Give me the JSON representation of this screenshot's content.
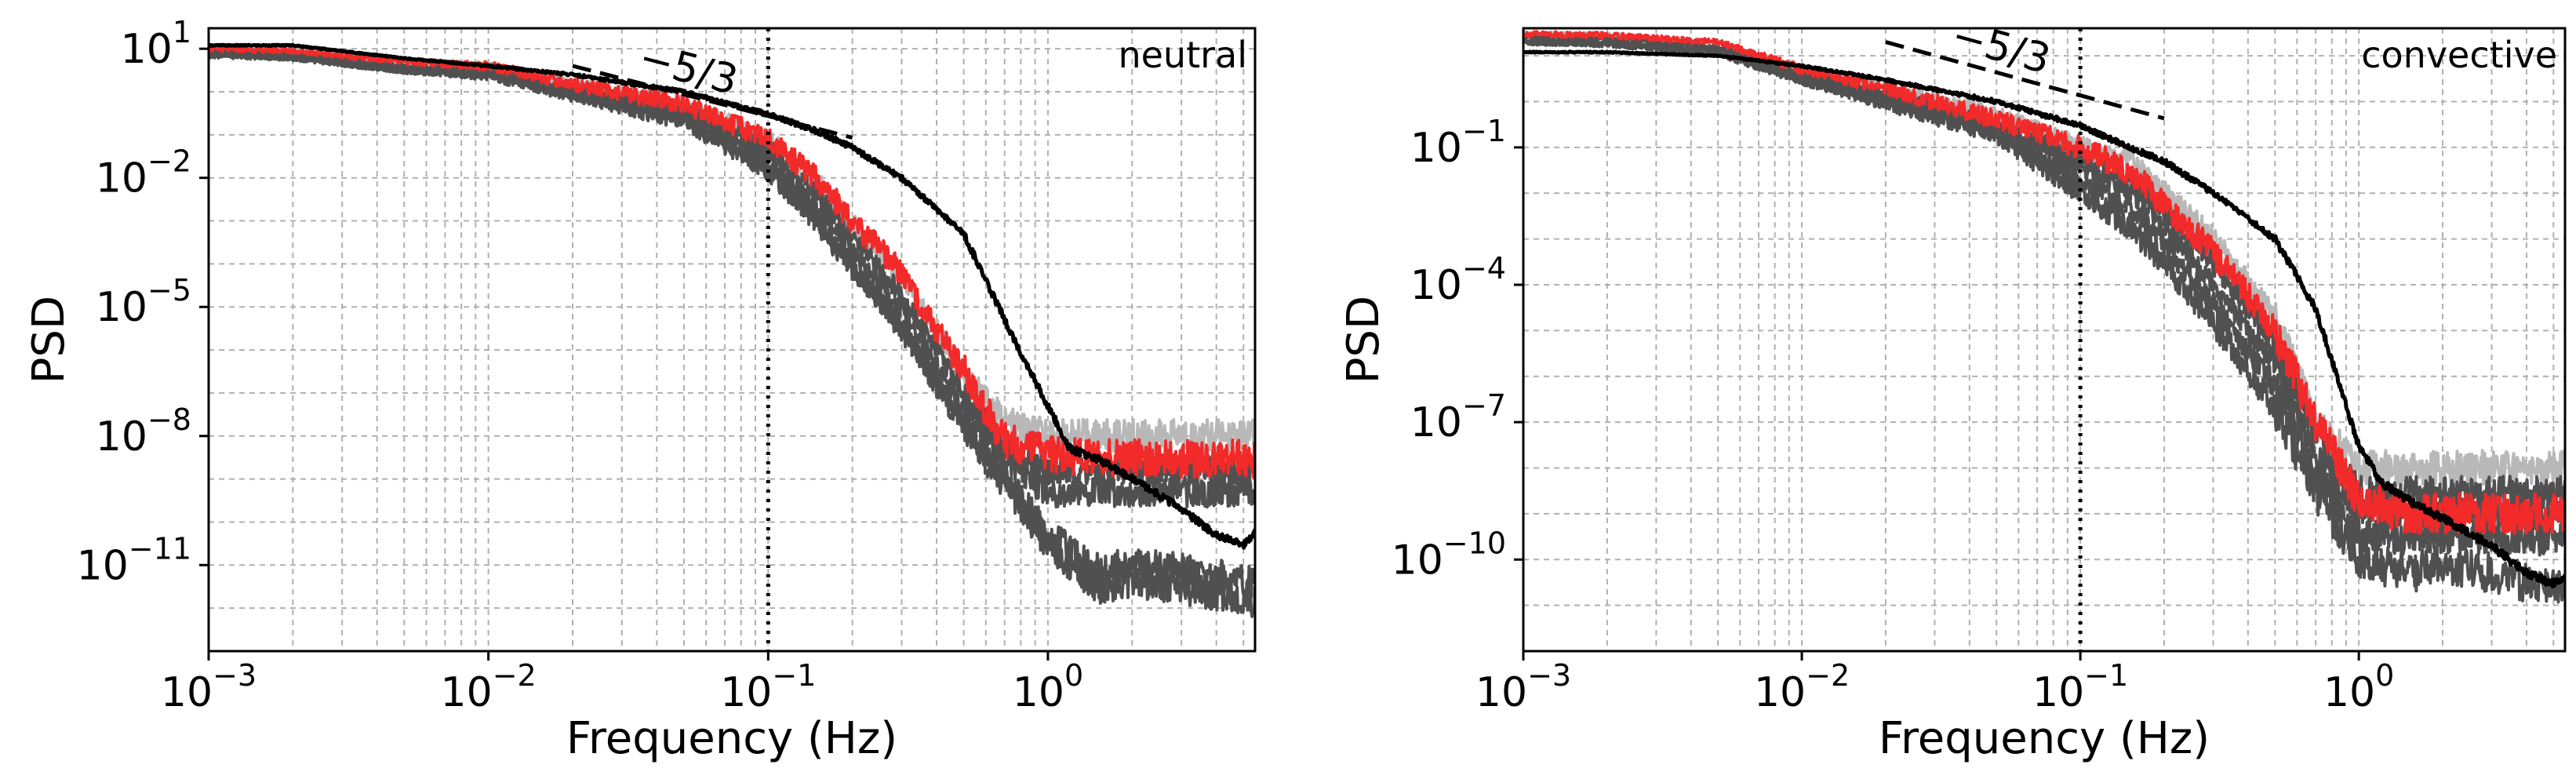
{
  "figure": {
    "xlabel": "Frequency (Hz)",
    "ylabel": "PSD"
  },
  "colors": {
    "gray_light": "#b8b8b8",
    "gray_dark": "#505050",
    "red": "#f22a2a",
    "black": "#000000",
    "grid": "#b0b0b0"
  },
  "chart_data": [
    {
      "type": "line",
      "title": "neutral",
      "xlabel": "Frequency (Hz)",
      "ylabel": "PSD",
      "xscale": "log",
      "yscale": "log",
      "xlim": [
        0.001,
        5.5
      ],
      "ylim": [
        1e-13,
        30
      ],
      "xticks": [
        0.001,
        0.01,
        0.1,
        1
      ],
      "xtick_labels": [
        {
          "base": "10",
          "exp": "−3"
        },
        {
          "base": "10",
          "exp": "−2"
        },
        {
          "base": "10",
          "exp": "−1"
        },
        {
          "base": "10",
          "exp": "0"
        }
      ],
      "yticks": [
        10,
        0.01,
        1e-05,
        1e-08,
        1e-11
      ],
      "ytick_labels": [
        {
          "base": "10",
          "exp": "1"
        },
        {
          "base": "10",
          "exp": "−2"
        },
        {
          "base": "10",
          "exp": "−5"
        },
        {
          "base": "10",
          "exp": "−8"
        },
        {
          "base": "10",
          "exp": "−11"
        }
      ],
      "grid": true,
      "reference_line": {
        "x": 0.1,
        "style": "dotted"
      },
      "slope_line": {
        "label": "−5/3",
        "x": [
          0.02,
          0.2
        ],
        "y": [
          4.0,
          0.086
        ]
      },
      "series": [
        {
          "name": "gray-light",
          "color": "#b8b8b8",
          "noise": 0.22,
          "x": [
            0.001,
            0.002,
            0.005,
            0.01,
            0.02,
            0.05,
            0.1,
            0.15,
            0.2,
            0.3,
            0.5,
            0.7,
            1.0,
            1.5,
            2.0,
            3.0,
            5.5
          ],
          "y": [
            10,
            9,
            5,
            4,
            1.5,
            0.5,
            0.08,
            0.008,
            0.0008,
            5e-05,
            3e-07,
            2e-08,
            1e-08,
            1e-08,
            1e-08,
            1e-08,
            1e-08
          ]
        },
        {
          "name": "gray-dark-1",
          "color": "#505050",
          "noise": 0.2,
          "x": [
            0.001,
            0.002,
            0.005,
            0.01,
            0.02,
            0.05,
            0.1,
            0.15,
            0.2,
            0.3,
            0.5,
            0.7,
            1.0,
            1.5,
            2.0,
            3.0,
            5.5
          ],
          "y": [
            9,
            8,
            4,
            3,
            1.2,
            0.4,
            0.05,
            0.004,
            0.0004,
            2e-05,
            1e-07,
            5e-09,
            1.5e-09,
            1.5e-09,
            1.5e-09,
            1.5e-09,
            1.5e-09
          ]
        },
        {
          "name": "gray-dark-2",
          "color": "#505050",
          "noise": 0.2,
          "x": [
            0.001,
            0.002,
            0.005,
            0.01,
            0.02,
            0.05,
            0.1,
            0.15,
            0.2,
            0.3,
            0.5,
            0.7,
            1.0,
            1.5,
            2.0,
            3.0,
            5.5
          ],
          "y": [
            8,
            7,
            3.5,
            2.8,
            1.0,
            0.3,
            0.03,
            0.002,
            0.0002,
            8e-06,
            4e-08,
            3e-09,
            5e-10,
            5e-10,
            5e-10,
            5e-10,
            5e-10
          ]
        },
        {
          "name": "gray-dark-3",
          "color": "#505050",
          "noise": 0.22,
          "x": [
            0.001,
            0.002,
            0.005,
            0.01,
            0.02,
            0.05,
            0.1,
            0.15,
            0.2,
            0.3,
            0.5,
            0.7,
            1.0,
            1.5,
            2.0,
            3.0,
            5.5
          ],
          "y": [
            8,
            6,
            3,
            2.5,
            0.9,
            0.25,
            0.02,
            0.001,
            0.0001,
            4e-06,
            2e-08,
            1e-09,
            5e-11,
            8e-12,
            1e-11,
            8e-12,
            4e-12
          ]
        },
        {
          "name": "gray-dark-4",
          "color": "#505050",
          "noise": 0.22,
          "x": [
            0.001,
            0.002,
            0.005,
            0.01,
            0.02,
            0.05,
            0.1,
            0.15,
            0.2,
            0.3,
            0.5,
            0.7,
            1.0,
            1.5,
            2.0,
            3.0,
            5.5
          ],
          "y": [
            7,
            6,
            3,
            2.3,
            0.8,
            0.2,
            0.015,
            0.0008,
            8e-05,
            3e-06,
            1.5e-08,
            8e-10,
            3e-11,
            3e-12,
            4e-12,
            3e-12,
            1.5e-12
          ]
        },
        {
          "name": "red",
          "color": "#f22a2a",
          "noise": 0.25,
          "x": [
            0.001,
            0.002,
            0.005,
            0.01,
            0.02,
            0.05,
            0.1,
            0.15,
            0.2,
            0.3,
            0.5,
            0.7,
            1.0,
            1.5,
            2.0,
            3.0,
            5.5
          ],
          "y": [
            10,
            9,
            5,
            4,
            1.5,
            0.5,
            0.08,
            0.009,
            0.001,
            6e-05,
            3e-07,
            8e-09,
            4e-09,
            3e-09,
            3e-09,
            3e-09,
            3e-09
          ]
        },
        {
          "name": "black",
          "color": "#000000",
          "noise": 0.05,
          "x": [
            0.001,
            0.002,
            0.005,
            0.01,
            0.02,
            0.05,
            0.1,
            0.15,
            0.2,
            0.3,
            0.5,
            0.7,
            1.0,
            1.2,
            1.5,
            2.0,
            3.0,
            4.0,
            5.0,
            5.5
          ],
          "y": [
            12,
            12,
            6,
            4,
            2.5,
            1.0,
            0.3,
            0.12,
            0.05,
            0.01,
            0.0005,
            5e-06,
            5e-08,
            5e-09,
            3e-09,
            1e-09,
            2e-10,
            5e-11,
            3e-11,
            6e-11
          ]
        }
      ]
    },
    {
      "type": "line",
      "title": "convective",
      "xlabel": "Frequency (Hz)",
      "ylabel": "PSD",
      "xscale": "log",
      "yscale": "log",
      "xlim": [
        0.001,
        5.5
      ],
      "ylim": [
        1e-12,
        40
      ],
      "xticks": [
        0.001,
        0.01,
        0.1,
        1
      ],
      "xtick_labels": [
        {
          "base": "10",
          "exp": "−3"
        },
        {
          "base": "10",
          "exp": "−2"
        },
        {
          "base": "10",
          "exp": "−1"
        },
        {
          "base": "10",
          "exp": "0"
        }
      ],
      "yticks": [
        0.1,
        0.0001,
        1e-07,
        1e-10
      ],
      "ytick_labels": [
        {
          "base": "10",
          "exp": "−1"
        },
        {
          "base": "10",
          "exp": "−4"
        },
        {
          "base": "10",
          "exp": "−7"
        },
        {
          "base": "10",
          "exp": "−10"
        }
      ],
      "grid": true,
      "reference_line": {
        "x": 0.1,
        "style": "dotted"
      },
      "slope_line": {
        "label": "−5/3",
        "x": [
          0.02,
          0.2
        ],
        "y": [
          20.0,
          0.43
        ]
      },
      "series": [
        {
          "name": "gray-light",
          "color": "#b8b8b8",
          "noise": 0.22,
          "x": [
            0.001,
            0.002,
            0.005,
            0.01,
            0.02,
            0.05,
            0.1,
            0.15,
            0.2,
            0.3,
            0.5,
            0.7,
            1.0,
            1.5,
            2.0,
            3.0,
            5.5
          ],
          "y": [
            30,
            28,
            20,
            5,
            2,
            0.5,
            0.1,
            0.05,
            0.01,
            0.001,
            2e-05,
            1e-07,
            1e-08,
            1e-08,
            1e-08,
            1e-08,
            1e-08
          ]
        },
        {
          "name": "gray-dark-1",
          "color": "#505050",
          "noise": 0.2,
          "x": [
            0.001,
            0.002,
            0.005,
            0.01,
            0.02,
            0.05,
            0.1,
            0.15,
            0.2,
            0.3,
            0.5,
            0.7,
            1.0,
            1.5,
            2.0,
            3.0,
            5.5
          ],
          "y": [
            25,
            24,
            15,
            4,
            1.5,
            0.3,
            0.06,
            0.02,
            0.004,
            0.0003,
            5e-06,
            5e-08,
            3e-09,
            3e-09,
            3e-09,
            3e-09,
            3e-09
          ]
        },
        {
          "name": "gray-dark-2",
          "color": "#505050",
          "noise": 0.2,
          "x": [
            0.001,
            0.002,
            0.005,
            0.01,
            0.02,
            0.05,
            0.1,
            0.15,
            0.2,
            0.3,
            0.5,
            0.7,
            1.0,
            1.5,
            2.0,
            3.0,
            5.5
          ],
          "y": [
            22,
            20,
            13,
            3.5,
            1.2,
            0.25,
            0.04,
            0.012,
            0.002,
            0.0001,
            2e-06,
            2e-08,
            1e-09,
            1e-09,
            1e-09,
            1e-09,
            1e-09
          ]
        },
        {
          "name": "gray-dark-3",
          "color": "#505050",
          "noise": 0.22,
          "x": [
            0.001,
            0.002,
            0.005,
            0.01,
            0.02,
            0.05,
            0.1,
            0.15,
            0.2,
            0.3,
            0.5,
            0.7,
            1.0,
            1.5,
            2.0,
            3.0,
            5.5
          ],
          "y": [
            20,
            18,
            12,
            3,
            1.0,
            0.2,
            0.02,
            0.005,
            0.0008,
            4e-05,
            6e-07,
            8e-09,
            3e-10,
            3e-10,
            3e-10,
            3e-10,
            3e-10
          ]
        },
        {
          "name": "gray-dark-4",
          "color": "#505050",
          "noise": 0.25,
          "x": [
            0.001,
            0.002,
            0.005,
            0.01,
            0.02,
            0.05,
            0.1,
            0.15,
            0.2,
            0.3,
            0.5,
            0.7,
            1.0,
            1.5,
            2.0,
            3.0,
            5.5
          ],
          "y": [
            20,
            18,
            11,
            3,
            0.9,
            0.2,
            0.01,
            0.002,
            0.0003,
            1.5e-05,
            2e-07,
            3e-09,
            1e-10,
            5e-11,
            8e-11,
            5e-11,
            2e-11
          ]
        },
        {
          "name": "red",
          "color": "#f22a2a",
          "noise": 0.25,
          "x": [
            0.001,
            0.002,
            0.005,
            0.01,
            0.02,
            0.05,
            0.1,
            0.15,
            0.2,
            0.3,
            0.5,
            0.7,
            1.0,
            1.5,
            2.0,
            3.0,
            5.5
          ],
          "y": [
            30,
            28,
            20,
            5,
            2,
            0.4,
            0.1,
            0.03,
            0.006,
            0.0005,
            1e-05,
            1e-07,
            2e-09,
            1e-09,
            1e-09,
            1e-09,
            1e-09
          ]
        },
        {
          "name": "black",
          "color": "#000000",
          "noise": 0.05,
          "x": [
            0.001,
            0.002,
            0.005,
            0.01,
            0.02,
            0.05,
            0.1,
            0.15,
            0.2,
            0.3,
            0.5,
            0.7,
            1.0,
            1.2,
            1.5,
            2.0,
            3.0,
            4.0,
            5.0,
            5.5
          ],
          "y": [
            12,
            12,
            10,
            6,
            3,
            1,
            0.3,
            0.1,
            0.05,
            0.01,
            0.001,
            3e-05,
            3e-08,
            5e-09,
            2e-09,
            8e-10,
            2e-10,
            5e-11,
            3e-11,
            4e-11
          ]
        }
      ]
    }
  ]
}
